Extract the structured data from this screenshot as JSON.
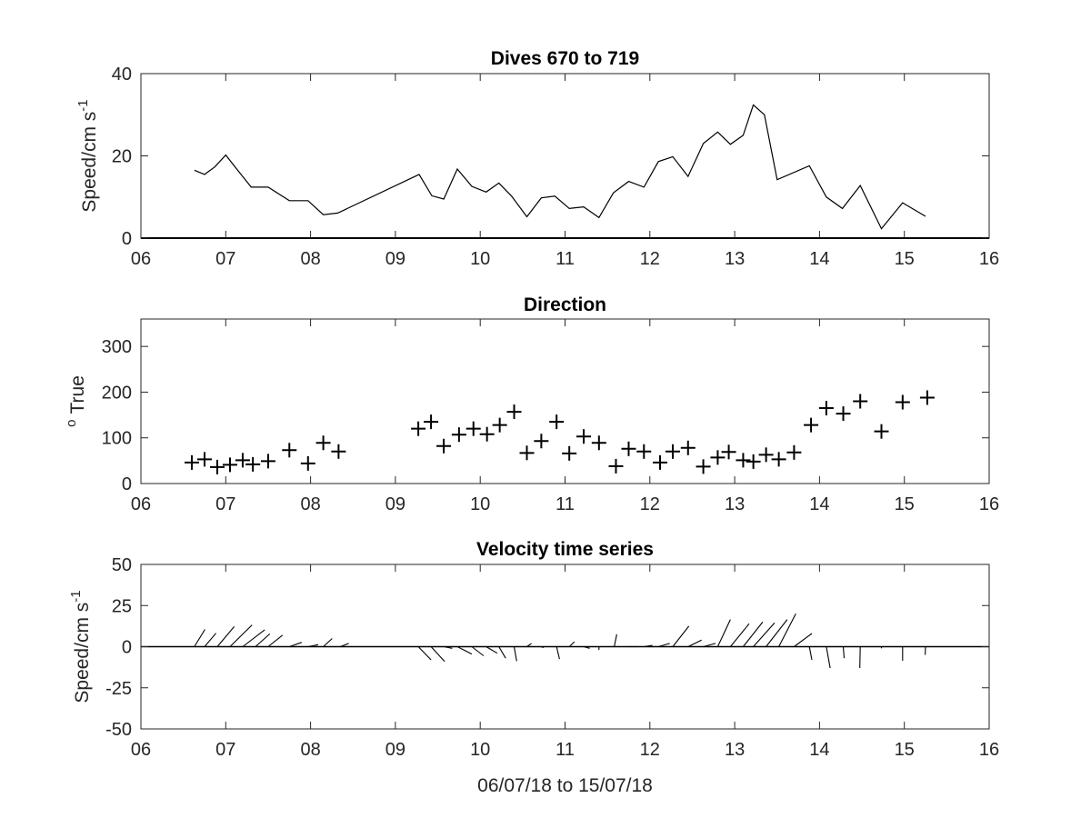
{
  "chart_data": [
    {
      "type": "line",
      "title": "Dives 670 to 719",
      "ylabel_main": "Speed/cm s",
      "ylabel_sup": "-1",
      "xlabel": "",
      "xlim": [
        6,
        16
      ],
      "ylim": [
        0,
        40
      ],
      "xticks": [
        "06",
        "07",
        "08",
        "09",
        "10",
        "11",
        "12",
        "13",
        "14",
        "15",
        "16"
      ],
      "yticks": [
        "0",
        "20",
        "40"
      ],
      "series": [
        {
          "x": [
            6.63,
            6.75,
            6.87,
            7.0,
            7.13,
            7.3,
            7.5,
            7.75,
            7.97,
            8.15,
            8.32,
            9.28,
            9.43,
            9.57,
            9.73,
            9.9,
            10.07,
            10.22,
            10.37,
            10.55,
            10.72,
            10.88,
            11.05,
            11.22,
            11.4,
            11.57,
            11.75,
            11.93,
            12.1,
            12.27,
            12.45,
            12.63,
            12.8,
            12.95,
            13.1,
            13.22,
            13.35,
            13.5,
            13.88,
            14.08,
            14.27,
            14.48,
            14.73,
            14.98,
            15.25
          ],
          "y": [
            16.5,
            15.5,
            17.3,
            20.2,
            16.8,
            12.4,
            12.4,
            9.1,
            9.1,
            5.7,
            6.1,
            15.5,
            10.3,
            9.5,
            16.8,
            12.6,
            11.2,
            13.4,
            10.2,
            5.2,
            9.8,
            10.2,
            7.2,
            7.6,
            5.0,
            11.0,
            13.8,
            12.4,
            18.6,
            19.8,
            15.0,
            23.0,
            25.8,
            22.8,
            25.0,
            32.4,
            30.0,
            14.2,
            17.6,
            10.0,
            7.2,
            12.8,
            2.3,
            8.6,
            5.3
          ]
        }
      ]
    },
    {
      "type": "scatter",
      "title": "Direction",
      "ylabel_main": "True",
      "ylabel_sup": "o",
      "xlabel": "",
      "xlim": [
        6,
        16
      ],
      "ylim": [
        0,
        360
      ],
      "xticks": [
        "06",
        "07",
        "08",
        "09",
        "10",
        "11",
        "12",
        "13",
        "14",
        "15",
        "16"
      ],
      "yticks": [
        "0",
        "100",
        "200",
        "300"
      ],
      "marker": "+",
      "series": [
        {
          "x": [
            6.6,
            6.75,
            6.9,
            7.05,
            7.2,
            7.32,
            7.5,
            7.75,
            7.97,
            8.15,
            8.33,
            9.27,
            9.42,
            9.57,
            9.75,
            9.92,
            10.08,
            10.23,
            10.4,
            10.55,
            10.72,
            10.9,
            11.05,
            11.22,
            11.4,
            11.6,
            11.75,
            11.93,
            12.12,
            12.27,
            12.45,
            12.63,
            12.8,
            12.93,
            13.1,
            13.22,
            13.37,
            13.52,
            13.7,
            13.9,
            14.08,
            14.28,
            14.48,
            14.73,
            14.98,
            15.27
          ],
          "y": [
            46,
            53,
            36,
            41,
            51,
            42,
            49,
            73,
            44,
            89,
            70,
            120,
            135,
            82,
            107,
            120,
            108,
            128,
            157,
            67,
            93,
            135,
            66,
            103,
            89,
            38,
            76,
            70,
            46,
            70,
            78,
            37,
            57,
            69,
            51,
            48,
            63,
            53,
            68,
            128,
            165,
            153,
            180,
            114,
            178,
            188
          ]
        }
      ]
    },
    {
      "type": "quiver",
      "title": "Velocity time series",
      "ylabel_main": "Speed/cm s",
      "ylabel_sup": "-1",
      "xlabel": "06/07/18 to 15/07/18",
      "xlim": [
        6,
        16
      ],
      "ylim": [
        -50,
        50
      ],
      "xticks": [
        "06",
        "07",
        "08",
        "09",
        "10",
        "11",
        "12",
        "13",
        "14",
        "15",
        "16"
      ],
      "yticks": [
        "-50",
        "-25",
        "0",
        "25",
        "50"
      ],
      "vectors": [
        {
          "x": 6.63,
          "u": 1.25,
          "v": 10.5
        },
        {
          "x": 6.75,
          "u": 1.35,
          "v": 8.2
        },
        {
          "x": 6.9,
          "u": 2.0,
          "v": 12.2
        },
        {
          "x": 7.05,
          "u": 2.6,
          "v": 13.2
        },
        {
          "x": 7.2,
          "u": 2.6,
          "v": 10.3
        },
        {
          "x": 7.35,
          "u": 1.7,
          "v": 7.8
        },
        {
          "x": 7.5,
          "u": 1.7,
          "v": 7.0
        },
        {
          "x": 7.75,
          "u": 1.45,
          "v": 2.6
        },
        {
          "x": 7.97,
          "u": 1.2,
          "v": 1.2
        },
        {
          "x": 8.15,
          "u": 1.05,
          "v": 5.0
        },
        {
          "x": 8.35,
          "u": 1.0,
          "v": 2.0
        },
        {
          "x": 9.27,
          "u": 1.5,
          "v": -8.0
        },
        {
          "x": 9.42,
          "u": 1.6,
          "v": -9.0
        },
        {
          "x": 9.57,
          "u": 1.0,
          "v": -1.0
        },
        {
          "x": 9.73,
          "u": 1.7,
          "v": -4.5
        },
        {
          "x": 9.9,
          "u": 1.4,
          "v": -5.5
        },
        {
          "x": 10.07,
          "u": 1.3,
          "v": -4.0
        },
        {
          "x": 10.22,
          "u": 0.8,
          "v": -7.0
        },
        {
          "x": 10.4,
          "u": 0.3,
          "v": -8.8
        },
        {
          "x": 10.55,
          "u": 0.55,
          "v": 2.0
        },
        {
          "x": 10.72,
          "u": 0.25,
          "v": -0.6
        },
        {
          "x": 10.9,
          "u": 0.35,
          "v": -7.5
        },
        {
          "x": 11.05,
          "u": 0.6,
          "v": 3.0
        },
        {
          "x": 11.22,
          "u": 0.7,
          "v": -1.0
        },
        {
          "x": 11.4,
          "u": 0.0,
          "v": -2.0
        },
        {
          "x": 11.58,
          "u": 0.3,
          "v": 7.5
        },
        {
          "x": 11.75,
          "u": 1.2,
          "v": 0.0
        },
        {
          "x": 11.93,
          "u": 1.0,
          "v": 0.8
        },
        {
          "x": 12.1,
          "u": 1.35,
          "v": 2.0
        },
        {
          "x": 12.27,
          "u": 1.9,
          "v": 12.5
        },
        {
          "x": 12.45,
          "u": 1.6,
          "v": 4.0
        },
        {
          "x": 12.63,
          "u": 1.45,
          "v": 2.0
        },
        {
          "x": 12.8,
          "u": 1.5,
          "v": 16.5
        },
        {
          "x": 12.95,
          "u": 2.2,
          "v": 14.0
        },
        {
          "x": 13.1,
          "u": 2.3,
          "v": 15.0
        },
        {
          "x": 13.22,
          "u": 2.5,
          "v": 14.5
        },
        {
          "x": 13.37,
          "u": 2.5,
          "v": 16.5
        },
        {
          "x": 13.52,
          "u": 2.0,
          "v": 20.0
        },
        {
          "x": 13.7,
          "u": 2.1,
          "v": 8.0
        },
        {
          "x": 13.88,
          "u": 0.3,
          "v": -8.0
        },
        {
          "x": 14.08,
          "u": 0.45,
          "v": -13.0
        },
        {
          "x": 14.28,
          "u": 0.1,
          "v": -7.0
        },
        {
          "x": 14.48,
          "u": -0.05,
          "v": -13.0
        },
        {
          "x": 14.73,
          "u": 0.0,
          "v": -1.0
        },
        {
          "x": 14.98,
          "u": 0.0,
          "v": -8.5
        },
        {
          "x": 15.25,
          "u": -0.05,
          "v": -5.0
        }
      ]
    }
  ]
}
